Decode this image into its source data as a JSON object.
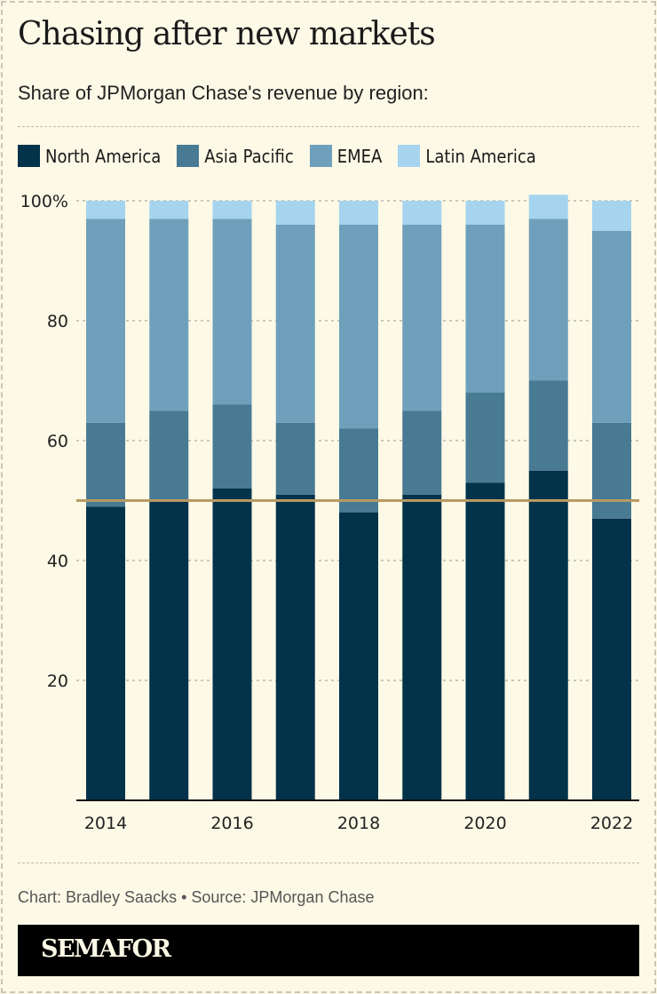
{
  "title": "Chasing after new markets",
  "subtitle": "Share of JPMorgan Chase's revenue by region:",
  "credit": "Chart: Bradley Saacks • Source: JPMorgan Chase",
  "brand": "SEMAFOR",
  "chart_data": {
    "type": "bar",
    "stacked": true,
    "categories": [
      "2014",
      "2015",
      "2016",
      "2017",
      "2018",
      "2019",
      "2020",
      "2021",
      "2022"
    ],
    "x_tick_labels": [
      "2014",
      "2016",
      "2018",
      "2020",
      "2022"
    ],
    "series": [
      {
        "name": "North America",
        "color": "#02334a",
        "values": [
          49,
          50,
          52,
          51,
          48,
          51,
          53,
          55,
          47
        ]
      },
      {
        "name": "Asia Pacific",
        "color": "#487a94",
        "values": [
          14,
          15,
          14,
          12,
          14,
          14,
          15,
          15,
          16
        ]
      },
      {
        "name": "EMEA",
        "color": "#6fa0bb",
        "values": [
          34,
          32,
          31,
          33,
          34,
          31,
          28,
          27,
          32
        ]
      },
      {
        "name": "Latin America",
        "color": "#a6d4ef",
        "values": [
          3,
          3,
          3,
          4,
          4,
          4,
          4,
          4,
          5
        ]
      }
    ],
    "ylim": [
      0,
      100
    ],
    "y_ticks": [
      20,
      40,
      60,
      80,
      100
    ],
    "y_tick_labels": [
      "20",
      "40",
      "60",
      "80",
      "100%"
    ],
    "reference_line": {
      "value": 50,
      "color": "#b89a62"
    },
    "grid": true,
    "legend_placement": "top-left"
  }
}
